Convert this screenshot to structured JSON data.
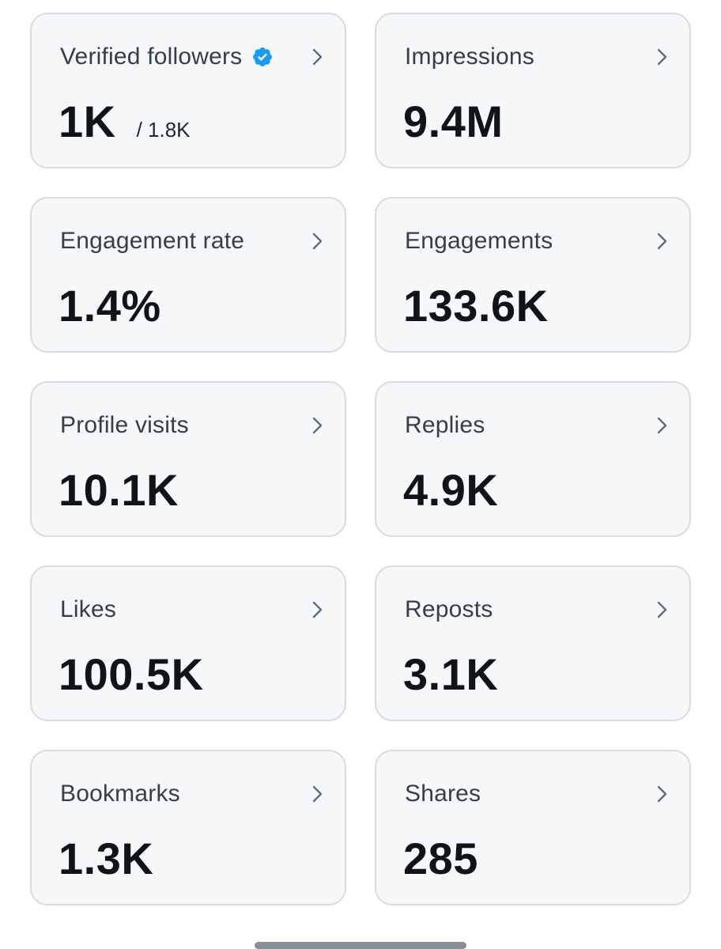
{
  "cards": [
    {
      "label": "Verified followers",
      "value": "1K",
      "sub": "/ 1.8K",
      "verified": true
    },
    {
      "label": "Impressions",
      "value": "9.4M"
    },
    {
      "label": "Engagement rate",
      "value": "1.4%"
    },
    {
      "label": "Engagements",
      "value": "133.6K"
    },
    {
      "label": "Profile visits",
      "value": "10.1K"
    },
    {
      "label": "Replies",
      "value": "4.9K"
    },
    {
      "label": "Likes",
      "value": "100.5K"
    },
    {
      "label": "Reposts",
      "value": "3.1K"
    },
    {
      "label": "Bookmarks",
      "value": "1.3K"
    },
    {
      "label": "Shares",
      "value": "285"
    }
  ],
  "icons": {
    "chevron": "chevron-right-icon",
    "verified": "verified-badge-icon"
  },
  "colors": {
    "card_bg": "#f5f7f8",
    "card_border": "#d6dde2",
    "verified_blue": "#1d9bf0",
    "chevron": "#5b7083"
  }
}
